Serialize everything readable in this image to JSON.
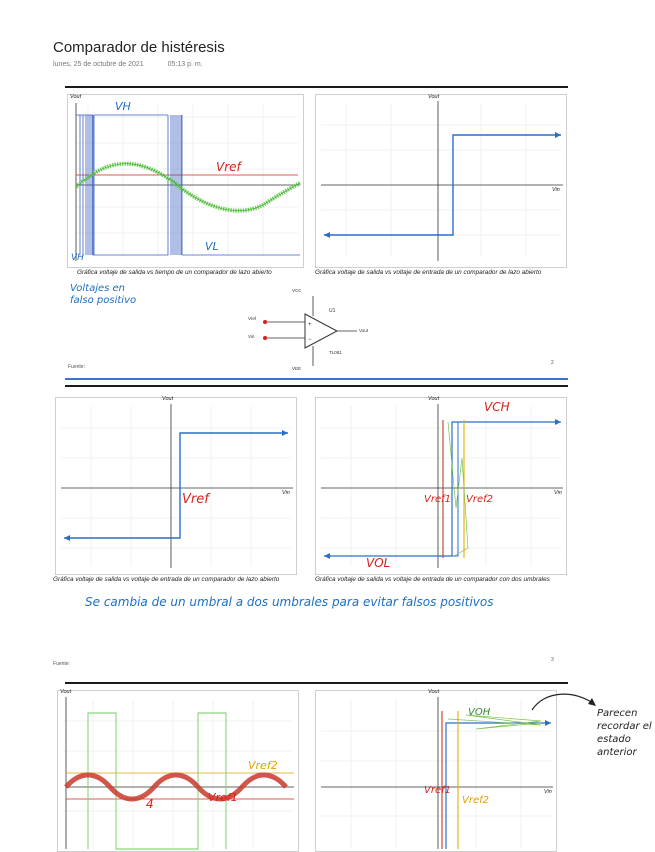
{
  "header": {
    "title": "Comparador de histéresis",
    "date": "lunes, 25 de octubre de 2021",
    "time": "05:13 p. m."
  },
  "slide1": {
    "left_plot": {
      "y_axis": "Vout",
      "notes": {
        "vh": "VH",
        "ref": "Vref",
        "vl": "VL",
        "vh_left": "VH",
        "pulses": "Voltajes en falso positivo"
      },
      "caption": "Gráfica voltaje de salida vs tiempo de un comparador de lazo abierto"
    },
    "right_plot": {
      "y_axis": "Vout",
      "x_axis": "Vin",
      "caption": "Gráfica voltaje de salida vs voltaje de entrada de un comparador de lazo abierto"
    },
    "circuit": {
      "vcc": "VCC",
      "ref": "Vref",
      "in": "Vin",
      "out": "Vout",
      "part": "U1",
      "model": "TL081",
      "vee": "VEE"
    },
    "footer": "Fuente:",
    "page": "2"
  },
  "slide2": {
    "left_plot": {
      "y_axis": "Vout",
      "x_axis": "Vin",
      "note_ref": "Vref",
      "caption": "Gráfica voltaje de salida vs voltaje de entrada de un comparador de lazo abierto"
    },
    "right_plot": {
      "y_axis": "Vout",
      "x_axis": "Vin",
      "notes": {
        "vh": "VCH",
        "vref1": "Vref1",
        "vref2": "Vref2",
        "vl": "VOL"
      },
      "caption": "Gráfica voltaje de salida vs voltaje de entrada de un comparador con dos umbrales"
    },
    "handwritten": "Se cambia de un umbral a dos umbrales para evitar falsos positivos",
    "footer": "Fuente:",
    "page": "3"
  },
  "slide3": {
    "left_plot": {
      "y_axis": "Vout",
      "notes": {
        "vref2": "Vref2",
        "vref1": "Vref1",
        "four": "4"
      }
    },
    "right_plot": {
      "y_axis": "Vout",
      "x_axis": "Vin",
      "notes": {
        "vh": "VOH",
        "vref1": "Vref1",
        "vref2": "Vref2"
      }
    },
    "side_note": "Parecen recordar el estado anterior"
  }
}
